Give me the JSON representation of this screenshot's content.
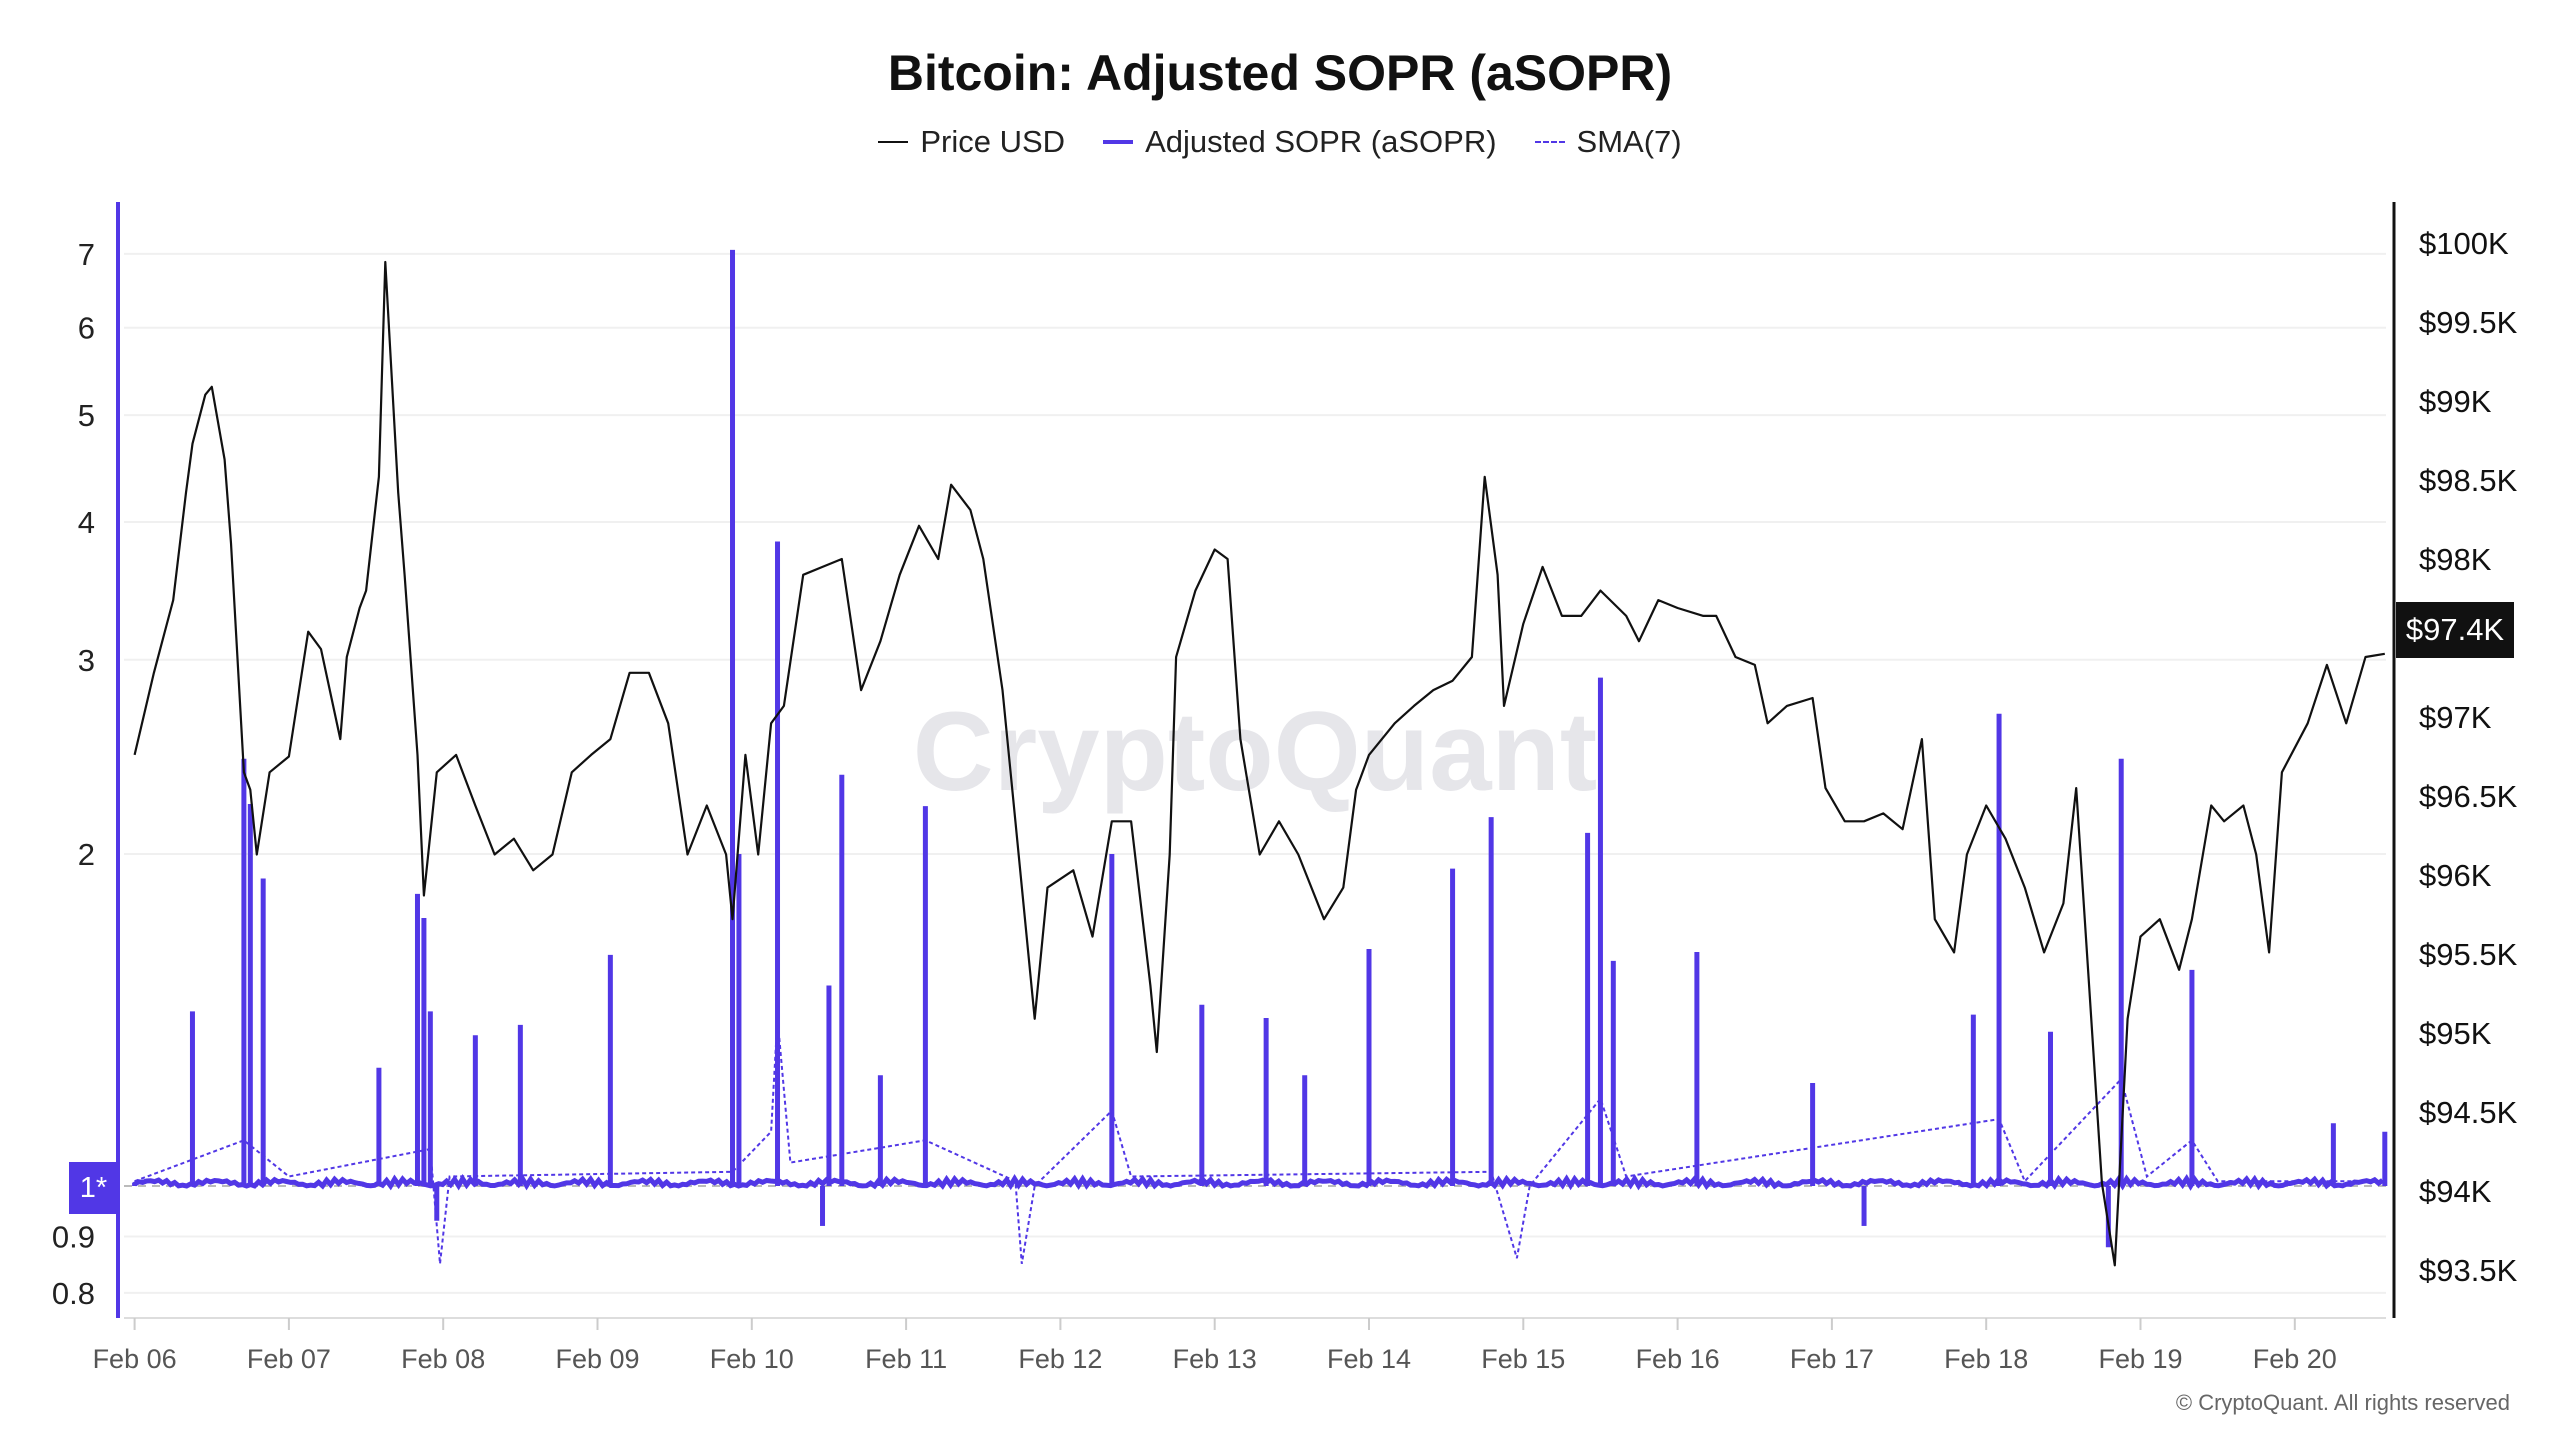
{
  "chart_data": {
    "type": "line",
    "title": "Bitcoin: Adjusted SOPR (aSOPR)",
    "legend": {
      "placement": "top-center",
      "items": [
        {
          "name": "Price USD",
          "color": "#111111",
          "style": "solid"
        },
        {
          "name": "Adjusted SOPR (aSOPR)",
          "color": "#5137e6",
          "style": "solid"
        },
        {
          "name": "SMA(7)",
          "color": "#5137e6",
          "style": "dashed"
        }
      ]
    },
    "x_axis": {
      "ticks": [
        "Feb 06",
        "Feb 07",
        "Feb 08",
        "Feb 09",
        "Feb 10",
        "Feb 11",
        "Feb 12",
        "Feb 13",
        "Feb 14",
        "Feb 15",
        "Feb 16",
        "Feb 17",
        "Feb 18",
        "Feb 19",
        "Feb 20"
      ],
      "range": [
        "Feb 06 00:00",
        "Feb 20 14:00"
      ]
    },
    "left_axis": {
      "scale": "log",
      "ticks": [
        "7",
        "6",
        "5",
        "4",
        "3",
        "2",
        "0.9",
        "0.8"
      ],
      "tick_values": [
        7,
        6,
        5,
        4,
        3,
        2,
        0.9,
        0.8
      ],
      "reference_label": "1*",
      "reference_value": 1,
      "range": [
        0.77,
        7.6
      ],
      "color": "#5137e6",
      "grid": true
    },
    "right_axis": {
      "ticks": [
        "$100K",
        "$99.5K",
        "$99K",
        "$98.5K",
        "$98K",
        "$97K",
        "$96.5K",
        "$96K",
        "$95.5K",
        "$95K",
        "$94.5K",
        "$94K",
        "$93.5K"
      ],
      "tick_values": [
        100,
        99.5,
        99,
        98.5,
        98,
        97,
        96.5,
        96,
        95.5,
        95,
        94.5,
        94,
        93.5
      ],
      "unit": "K USD",
      "range": [
        93.18,
        100.26
      ],
      "last_value_label": "$97.4K"
    },
    "series": [
      {
        "name": "Price USD",
        "points": [
          [
            "Feb 06 00:00",
            96.76
          ],
          [
            "Feb 06 03:00",
            97.28
          ],
          [
            "Feb 06 06:00",
            97.74
          ],
          [
            "Feb 06 08:00",
            98.42
          ],
          [
            "Feb 06 09:00",
            98.73
          ],
          [
            "Feb 06 11:00",
            99.04
          ],
          [
            "Feb 06 12:00",
            99.09
          ],
          [
            "Feb 06 14:00",
            98.63
          ],
          [
            "Feb 06 15:00",
            98.1
          ],
          [
            "Feb 06 17:00",
            96.65
          ],
          [
            "Feb 06 18:00",
            96.54
          ],
          [
            "Feb 06 19:00",
            96.13
          ],
          [
            "Feb 06 21:00",
            96.65
          ],
          [
            "Feb 07 00:00",
            96.75
          ],
          [
            "Feb 07 03:00",
            97.54
          ],
          [
            "Feb 07 05:00",
            97.43
          ],
          [
            "Feb 07 08:00",
            96.86
          ],
          [
            "Feb 07 09:00",
            97.38
          ],
          [
            "Feb 07 11:00",
            97.69
          ],
          [
            "Feb 07 12:00",
            97.8
          ],
          [
            "Feb 07 14:00",
            98.52
          ],
          [
            "Feb 07 15:00",
            99.88
          ],
          [
            "Feb 07 17:00",
            98.42
          ],
          [
            "Feb 07 18:00",
            97.9
          ],
          [
            "Feb 07 20:00",
            96.76
          ],
          [
            "Feb 07 21:00",
            95.87
          ],
          [
            "Feb 07 23:00",
            96.65
          ],
          [
            "Feb 08 02:00",
            96.76
          ],
          [
            "Feb 08 05:00",
            96.44
          ],
          [
            "Feb 08 08:00",
            96.13
          ],
          [
            "Feb 08 11:00",
            96.23
          ],
          [
            "Feb 08 14:00",
            96.03
          ],
          [
            "Feb 08 17:00",
            96.13
          ],
          [
            "Feb 08 20:00",
            96.65
          ],
          [
            "Feb 08 23:00",
            96.76
          ],
          [
            "Feb 09 02:00",
            96.86
          ],
          [
            "Feb 09 05:00",
            97.28
          ],
          [
            "Feb 09 08:00",
            97.28
          ],
          [
            "Feb 09 11:00",
            96.96
          ],
          [
            "Feb 09 14:00",
            96.13
          ],
          [
            "Feb 09 17:00",
            96.44
          ],
          [
            "Feb 09 20:00",
            96.13
          ],
          [
            "Feb 09 21:00",
            95.72
          ],
          [
            "Feb 09 23:00",
            96.76
          ],
          [
            "Feb 10 01:00",
            96.13
          ],
          [
            "Feb 10 03:00",
            96.96
          ],
          [
            "Feb 10 05:00",
            97.07
          ],
          [
            "Feb 10 08:00",
            97.9
          ],
          [
            "Feb 10 11:00",
            97.95
          ],
          [
            "Feb 10 14:00",
            98.0
          ],
          [
            "Feb 10 17:00",
            97.17
          ],
          [
            "Feb 10 20:00",
            97.48
          ],
          [
            "Feb 10 23:00",
            97.9
          ],
          [
            "Feb 11 02:00",
            98.21
          ],
          [
            "Feb 11 05:00",
            98.0
          ],
          [
            "Feb 11 07:00",
            98.47
          ],
          [
            "Feb 11 10:00",
            98.31
          ],
          [
            "Feb 11 12:00",
            98.0
          ],
          [
            "Feb 11 15:00",
            97.17
          ],
          [
            "Feb 11 17:00",
            96.34
          ],
          [
            "Feb 11 20:00",
            95.09
          ],
          [
            "Feb 11 22:00",
            95.92
          ],
          [
            "Feb 12 02:00",
            96.03
          ],
          [
            "Feb 12 05:00",
            95.61
          ],
          [
            "Feb 12 08:00",
            96.34
          ],
          [
            "Feb 12 11:00",
            96.34
          ],
          [
            "Feb 12 14:00",
            95.3
          ],
          [
            "Feb 12 15:00",
            94.88
          ],
          [
            "Feb 12 17:00",
            96.13
          ],
          [
            "Feb 12 18:00",
            97.38
          ],
          [
            "Feb 12 21:00",
            97.8
          ],
          [
            "Feb 13 00:00",
            98.06
          ],
          [
            "Feb 13 02:00",
            98.0
          ],
          [
            "Feb 13 04:00",
            96.86
          ],
          [
            "Feb 13 07:00",
            96.13
          ],
          [
            "Feb 13 10:00",
            96.34
          ],
          [
            "Feb 13 13:00",
            96.13
          ],
          [
            "Feb 13 17:00",
            95.72
          ],
          [
            "Feb 13 20:00",
            95.92
          ],
          [
            "Feb 13 22:00",
            96.54
          ],
          [
            "Feb 14 00:00",
            96.76
          ],
          [
            "Feb 14 04:00",
            96.96
          ],
          [
            "Feb 14 07:00",
            97.07
          ],
          [
            "Feb 14 10:00",
            97.17
          ],
          [
            "Feb 14 13:00",
            97.23
          ],
          [
            "Feb 14 16:00",
            97.38
          ],
          [
            "Feb 14 18:00",
            98.52
          ],
          [
            "Feb 14 20:00",
            97.9
          ],
          [
            "Feb 14 21:00",
            97.07
          ],
          [
            "Feb 15 00:00",
            97.59
          ],
          [
            "Feb 15 03:00",
            97.95
          ],
          [
            "Feb 15 06:00",
            97.64
          ],
          [
            "Feb 15 09:00",
            97.64
          ],
          [
            "Feb 15 12:00",
            97.8
          ],
          [
            "Feb 15 16:00",
            97.64
          ],
          [
            "Feb 15 18:00",
            97.48
          ],
          [
            "Feb 15 21:00",
            97.74
          ],
          [
            "Feb 16 00:00",
            97.69
          ],
          [
            "Feb 16 04:00",
            97.64
          ],
          [
            "Feb 16 06:00",
            97.64
          ],
          [
            "Feb 16 09:00",
            97.38
          ],
          [
            "Feb 16 12:00",
            97.33
          ],
          [
            "Feb 16 14:00",
            96.96
          ],
          [
            "Feb 16 17:00",
            97.07
          ],
          [
            "Feb 16 21:00",
            97.12
          ],
          [
            "Feb 16 23:00",
            96.55
          ],
          [
            "Feb 17 02:00",
            96.34
          ],
          [
            "Feb 17 05:00",
            96.34
          ],
          [
            "Feb 17 08:00",
            96.39
          ],
          [
            "Feb 17 11:00",
            96.29
          ],
          [
            "Feb 17 14:00",
            96.86
          ],
          [
            "Feb 17 16:00",
            95.72
          ],
          [
            "Feb 17 19:00",
            95.51
          ],
          [
            "Feb 17 21:00",
            96.13
          ],
          [
            "Feb 18 00:00",
            96.44
          ],
          [
            "Feb 18 03:00",
            96.23
          ],
          [
            "Feb 18 06:00",
            95.92
          ],
          [
            "Feb 18 09:00",
            95.51
          ],
          [
            "Feb 18 12:00",
            95.82
          ],
          [
            "Feb 18 14:00",
            96.55
          ],
          [
            "Feb 18 16:00",
            95.3
          ],
          [
            "Feb 18 18:00",
            94.05
          ],
          [
            "Feb 18 20:00",
            93.53
          ],
          [
            "Feb 18 22:00",
            95.09
          ],
          [
            "Feb 19 00:00",
            95.61
          ],
          [
            "Feb 19 03:00",
            95.72
          ],
          [
            "Feb 19 06:00",
            95.4
          ],
          [
            "Feb 19 08:00",
            95.72
          ],
          [
            "Feb 19 11:00",
            96.44
          ],
          [
            "Feb 19 13:00",
            96.34
          ],
          [
            "Feb 19 16:00",
            96.44
          ],
          [
            "Feb 19 18:00",
            96.13
          ],
          [
            "Feb 19 20:00",
            95.51
          ],
          [
            "Feb 19 22:00",
            96.65
          ],
          [
            "Feb 20 02:00",
            96.96
          ],
          [
            "Feb 20 05:00",
            97.33
          ],
          [
            "Feb 20 08:00",
            96.96
          ],
          [
            "Feb 20 11:00",
            97.38
          ],
          [
            "Feb 20 14:00",
            97.4
          ]
        ]
      },
      {
        "name": "Adjusted SOPR (aSOPR)",
        "baseline": 1.0,
        "points": [
          [
            "Feb 06 09:00",
            1.44
          ],
          [
            "Feb 06 17:00",
            2.44
          ],
          [
            "Feb 06 18:00",
            2.22
          ],
          [
            "Feb 06 20:00",
            1.9
          ],
          [
            "Feb 07 14:00",
            1.28
          ],
          [
            "Feb 07 20:00",
            1.84
          ],
          [
            "Feb 07 21:00",
            1.75
          ],
          [
            "Feb 07 22:00",
            1.44
          ],
          [
            "Feb 07 23:00",
            0.93
          ],
          [
            "Feb 08 05:00",
            1.37
          ],
          [
            "Feb 08 12:00",
            1.4
          ],
          [
            "Feb 09 02:00",
            1.62
          ],
          [
            "Feb 09 21:00",
            7.06
          ],
          [
            "Feb 09 22:00",
            2.0
          ],
          [
            "Feb 10 04:00",
            3.84
          ],
          [
            "Feb 10 11:00",
            0.92
          ],
          [
            "Feb 10 12:00",
            1.52
          ],
          [
            "Feb 10 14:00",
            2.36
          ],
          [
            "Feb 10 20:00",
            1.26
          ],
          [
            "Feb 11 03:00",
            2.21
          ],
          [
            "Feb 12 08:00",
            2.0
          ],
          [
            "Feb 12 22:00",
            1.46
          ],
          [
            "Feb 13 08:00",
            1.42
          ],
          [
            "Feb 13 14:00",
            1.26
          ],
          [
            "Feb 14 00:00",
            1.64
          ],
          [
            "Feb 14 13:00",
            1.94
          ],
          [
            "Feb 14 19:00",
            2.16
          ],
          [
            "Feb 15 10:00",
            2.09
          ],
          [
            "Feb 15 12:00",
            2.89
          ],
          [
            "Feb 15 14:00",
            1.6
          ],
          [
            "Feb 16 03:00",
            1.63
          ],
          [
            "Feb 16 21:00",
            1.24
          ],
          [
            "Feb 17 05:00",
            0.92
          ],
          [
            "Feb 17 22:00",
            1.43
          ],
          [
            "Feb 18 02:00",
            2.68
          ],
          [
            "Feb 18 10:00",
            1.38
          ],
          [
            "Feb 18 19:00",
            0.88
          ],
          [
            "Feb 18 21:00",
            2.44
          ],
          [
            "Feb 19 08:00",
            1.57
          ],
          [
            "Feb 20 06:00",
            1.14
          ],
          [
            "Feb 20 14:00",
            1.12
          ]
        ]
      },
      {
        "name": "SMA(7)",
        "points": [
          [
            "Feb 06 00:00",
            1.01
          ],
          [
            "Feb 06 17:00",
            1.1
          ],
          [
            "Feb 07 00:00",
            1.02
          ],
          [
            "Feb 07 22:00",
            1.08
          ],
          [
            "Feb 07 23:30",
            0.85
          ],
          [
            "Feb 08 01:00",
            1.02
          ],
          [
            "Feb 09 21:00",
            1.03
          ],
          [
            "Feb 10 03:00",
            1.12
          ],
          [
            "Feb 10 04:00",
            1.42
          ],
          [
            "Feb 10 06:00",
            1.05
          ],
          [
            "Feb 11 03:00",
            1.1
          ],
          [
            "Feb 11 17:00",
            1.01
          ],
          [
            "Feb 11 18:00",
            0.85
          ],
          [
            "Feb 11 20:00",
            1.0
          ],
          [
            "Feb 12 08:00",
            1.17
          ],
          [
            "Feb 12 11:00",
            1.02
          ],
          [
            "Feb 14 19:00",
            1.03
          ],
          [
            "Feb 14 23:00",
            0.86
          ],
          [
            "Feb 15 01:00",
            1.0
          ],
          [
            "Feb 15 12:00",
            1.2
          ],
          [
            "Feb 15 16:00",
            1.02
          ],
          [
            "Feb 18 02:00",
            1.15
          ],
          [
            "Feb 18 06:00",
            1.01
          ],
          [
            "Feb 18 21:00",
            1.25
          ],
          [
            "Feb 19 01:00",
            1.02
          ],
          [
            "Feb 19 08:00",
            1.1
          ],
          [
            "Feb 19 12:00",
            1.01
          ],
          [
            "Feb 20 14:00",
            1.01
          ]
        ]
      }
    ]
  },
  "watermark": "CryptoQuant",
  "copyright": "© CryptoQuant. All rights reserved"
}
